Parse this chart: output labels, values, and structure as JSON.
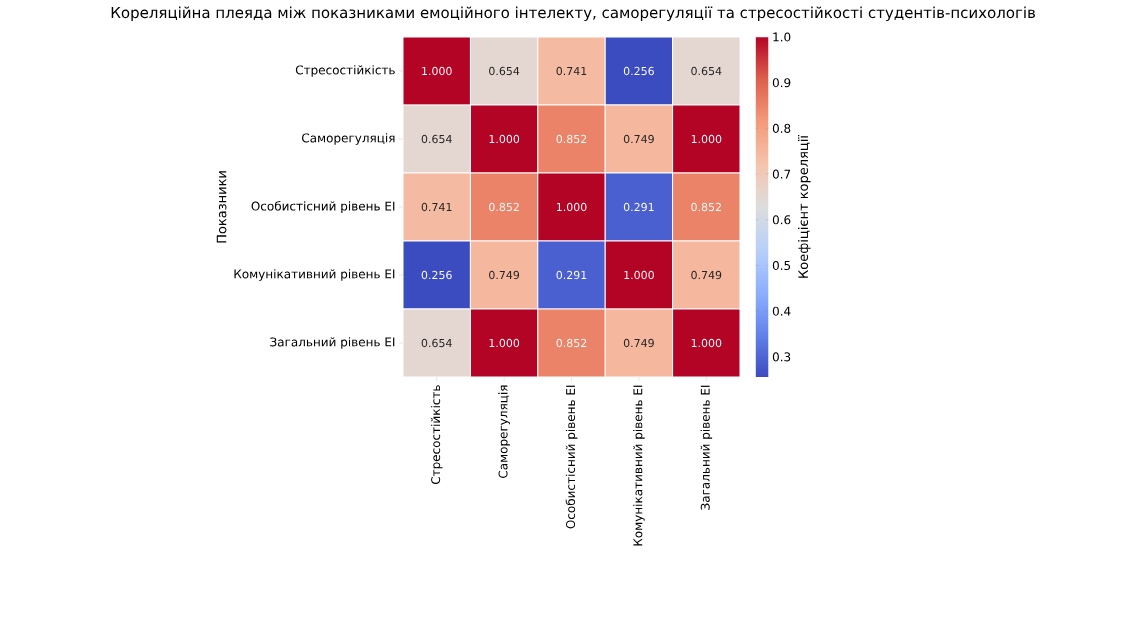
{
  "chart_data": {
    "type": "heatmap",
    "title": "Кореляційна плеяда між показниками емоційного інтелекту, саморегуляції та стресостійкості студентів-психологів",
    "ylabel": "Показники",
    "clabel": "Коефіцієнт кореляції",
    "categories": [
      "Стресостійкість",
      "Саморегуляція",
      "Особистісний рівень EI",
      "Комунікативний рівень EI",
      "Загальний рівень EI"
    ],
    "y_categories": [
      "Стресостійкість",
      "Саморегуляція",
      "Особистісний рівень EI",
      "Комунікативний рівень EI",
      "Загальний рівень EI"
    ],
    "cells": [
      [
        1.0,
        0.654,
        0.741,
        0.256,
        0.654
      ],
      [
        0.654,
        1.0,
        0.852,
        0.749,
        1.0
      ],
      [
        0.741,
        0.852,
        1.0,
        0.291,
        0.852
      ],
      [
        0.256,
        0.749,
        0.291,
        1.0,
        0.749
      ],
      [
        0.654,
        1.0,
        0.852,
        0.749,
        1.0
      ]
    ],
    "cell_labels": [
      [
        "1.000",
        "0.654",
        "0.741",
        "0.256",
        "0.654"
      ],
      [
        "0.654",
        "1.000",
        "0.852",
        "0.749",
        "1.000"
      ],
      [
        "0.741",
        "0.852",
        "1.000",
        "0.291",
        "0.852"
      ],
      [
        "0.256",
        "0.749",
        "0.291",
        "1.000",
        "0.749"
      ],
      [
        "0.654",
        "1.000",
        "0.852",
        "0.749",
        "1.000"
      ]
    ],
    "clim": [
      0.256,
      1.0
    ],
    "cticks": [
      0.3,
      0.4,
      0.5,
      0.6,
      0.7,
      0.8,
      0.9,
      {
        "value": 1.0,
        "label": "1.0"
      }
    ]
  }
}
